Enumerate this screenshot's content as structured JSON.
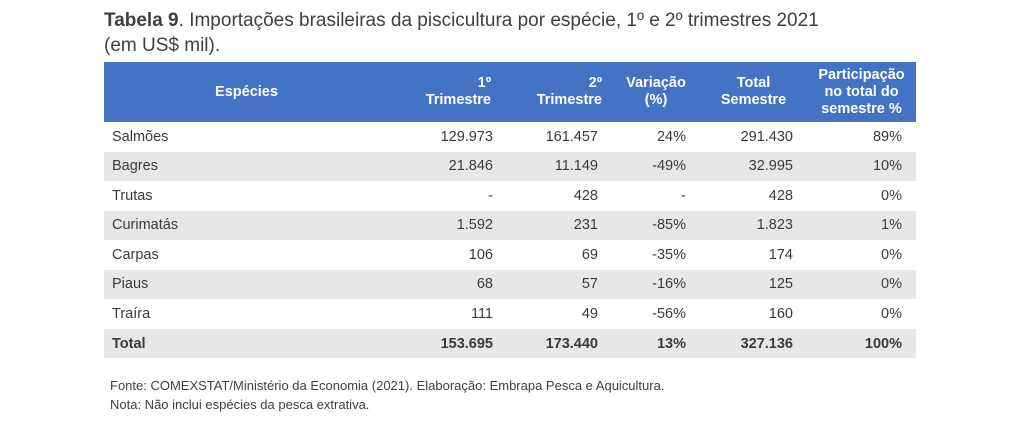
{
  "caption": {
    "label": "Tabela 9",
    "text": ". Importações brasileiras da piscicultura por espécie, 1º e 2º trimestres 2021",
    "line2": "(em US$ mil)."
  },
  "table": {
    "headers": {
      "especies": "Espécies",
      "t1_line1": "1º",
      "t1_line2": "Trimestre",
      "t2_line1": "2º",
      "t2_line2": "Trimestre",
      "var_line1": "Variação",
      "var_line2": "(%)",
      "tot_line1": "Total",
      "tot_line2": "Semestre",
      "part_line1": "Participação",
      "part_line2": "no total do",
      "part_line3": "semestre %"
    },
    "rows": [
      {
        "especie": "Salmões",
        "t1": "129.973",
        "t2": "161.457",
        "var": "24%",
        "total": "291.430",
        "part": "89%"
      },
      {
        "especie": "Bagres",
        "t1": "21.846",
        "t2": "11.149",
        "var": "-49%",
        "total": "32.995",
        "part": "10%"
      },
      {
        "especie": "Trutas",
        "t1": "-",
        "t2": "428",
        "var": "-",
        "total": "428",
        "part": "0%"
      },
      {
        "especie": "Curimatás",
        "t1": "1.592",
        "t2": "231",
        "var": "-85%",
        "total": "1.823",
        "part": "1%"
      },
      {
        "especie": "Carpas",
        "t1": "106",
        "t2": "69",
        "var": "-35%",
        "total": "174",
        "part": "0%"
      },
      {
        "especie": "Piaus",
        "t1": "68",
        "t2": "57",
        "var": "-16%",
        "total": "125",
        "part": "0%"
      },
      {
        "especie": "Traíra",
        "t1": "111",
        "t2": "49",
        "var": "-56%",
        "total": "160",
        "part": "0%"
      }
    ],
    "total": {
      "especie": "Total",
      "t1": "153.695",
      "t2": "173.440",
      "var": "13%",
      "total": "327.136",
      "part": "100%"
    }
  },
  "notes": {
    "fonte": "Fonte: COMEXSTAT/Ministério da Economia (2021). Elaboração: Embrapa Pesca e Aquicultura.",
    "nota": "Nota: Não inclui espécies da pesca extrativa."
  },
  "colors": {
    "header_bg": "#4472c4",
    "header_text": "#ffffff",
    "row_shade": "#e7e7e7"
  }
}
